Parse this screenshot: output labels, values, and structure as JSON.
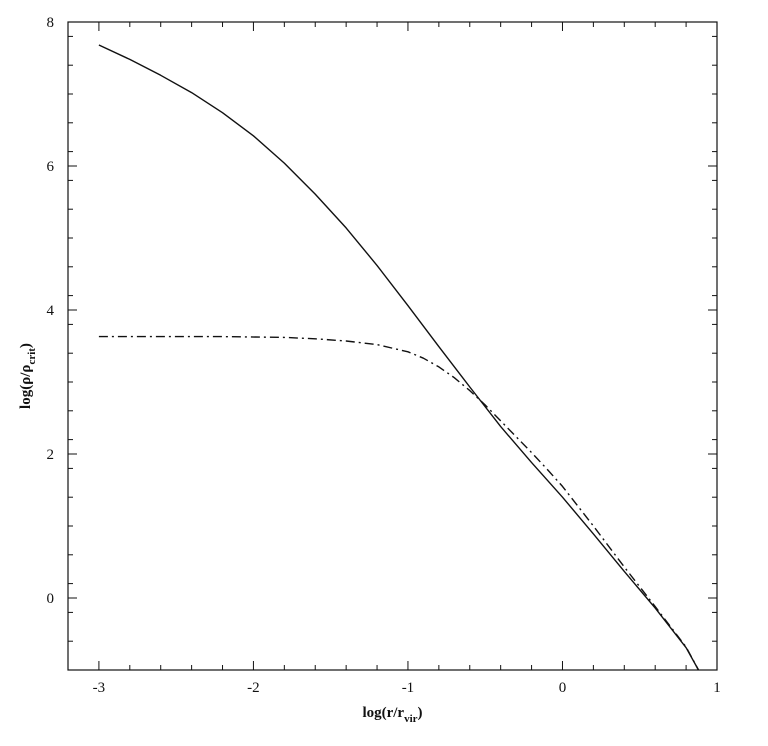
{
  "chart_data": {
    "type": "line",
    "title": "",
    "xlabel": {
      "main": "log(r/r",
      "sub": "vir",
      "close": ")"
    },
    "ylabel": {
      "main": "log(ρ/ρ",
      "sub": "crit",
      "close": ")"
    },
    "xlim": [
      -3.2,
      1.0
    ],
    "ylim": [
      -1.0,
      8.0
    ],
    "xticks": [
      -3,
      -2,
      -1,
      0,
      1
    ],
    "xtick_labels": [
      "-3",
      "-2",
      "-1",
      "0",
      "1"
    ],
    "yticks": [
      0,
      2,
      4,
      6,
      8
    ],
    "ytick_labels": [
      "0",
      "2",
      "4",
      "6",
      "8"
    ],
    "x_minor_step": 0.2,
    "y_minor_step": 0.4,
    "grid": false,
    "legend": "none",
    "series": [
      {
        "style": "solid",
        "color": "#111111",
        "x": [
          -3.0,
          -2.8,
          -2.6,
          -2.4,
          -2.2,
          -2.0,
          -1.8,
          -1.6,
          -1.4,
          -1.2,
          -1.0,
          -0.8,
          -0.6,
          -0.4,
          -0.2,
          0.0,
          0.2,
          0.4,
          0.6,
          0.8,
          0.88
        ],
        "y": [
          7.68,
          7.48,
          7.26,
          7.02,
          6.74,
          6.42,
          6.04,
          5.61,
          5.14,
          4.62,
          4.06,
          3.49,
          2.93,
          2.38,
          1.88,
          1.4,
          0.89,
          0.37,
          -0.14,
          -0.69,
          -1.0
        ]
      },
      {
        "style": "dashed",
        "color": "#111111",
        "x": [
          -3.0,
          -2.6,
          -2.2,
          -1.8,
          -1.6,
          -1.4,
          -1.2,
          -1.0,
          -0.9,
          -0.8,
          -0.7,
          -0.6,
          -0.5,
          -0.4,
          -0.3,
          -0.2,
          -0.1,
          0.0,
          0.2,
          0.4,
          0.6,
          0.8,
          0.88
        ],
        "y": [
          3.63,
          3.63,
          3.63,
          3.62,
          3.6,
          3.57,
          3.52,
          3.42,
          3.33,
          3.21,
          3.06,
          2.88,
          2.68,
          2.46,
          2.24,
          2.02,
          1.79,
          1.55,
          1.0,
          0.43,
          -0.12,
          -0.68,
          -1.0
        ]
      }
    ]
  }
}
